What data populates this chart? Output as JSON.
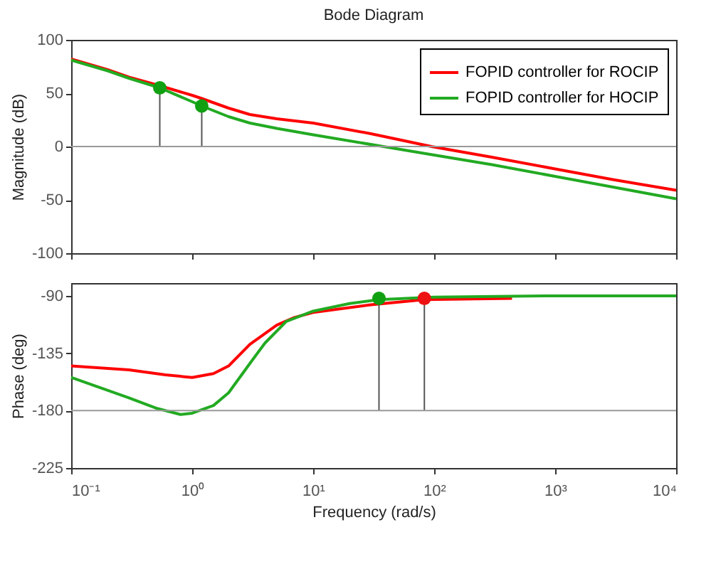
{
  "chart_data": [
    {
      "type": "line",
      "title": "Bode Diagram",
      "ylabel": "Magnitude (dB)",
      "xlim": [
        0.1,
        10000
      ],
      "ylim": [
        -100,
        100
      ],
      "yticks": [
        -100,
        -50,
        0,
        50,
        100
      ],
      "xticks": [
        0.1,
        1,
        10,
        100,
        1000,
        10000
      ],
      "log": "x",
      "tick_labels": "y",
      "legend": "top right",
      "grid": false,
      "ref_lines": [
        {
          "axis": "y",
          "value": 0,
          "color": "#999999"
        }
      ],
      "series": [
        {
          "name": "FOPID controller for ROCIP",
          "color": "#ff0000",
          "x": [
            0.1,
            0.2,
            0.3,
            0.54,
            1,
            1.2,
            2,
            3,
            5,
            10,
            30,
            95,
            300,
            1000,
            3000,
            10000
          ],
          "values": [
            82,
            72,
            65,
            57,
            48,
            45,
            36,
            30,
            26,
            22,
            12,
            0,
            -10,
            -21,
            -31,
            -41
          ]
        },
        {
          "name": "FOPID controller for HOCIP",
          "color": "#22aa22",
          "x": [
            0.1,
            0.2,
            0.3,
            0.54,
            1,
            1.2,
            2,
            3,
            5,
            10,
            38,
            100,
            300,
            1000,
            3000,
            10000
          ],
          "values": [
            81,
            71,
            64,
            55,
            42,
            38,
            28,
            22,
            17,
            11,
            0,
            -8,
            -17,
            -28,
            -38,
            -49
          ]
        },
        {
          "color": "#555555",
          "x": [
            0.54,
            0.54
          ],
          "values": [
            0,
            55
          ]
        },
        {
          "color": "#555555",
          "x": [
            1.2,
            1.2
          ],
          "values": [
            0,
            38
          ]
        },
        {
          "type": "scatter",
          "color": "#11a011",
          "x": [
            0.54,
            1.2
          ],
          "values": [
            55,
            38
          ]
        }
      ]
    },
    {
      "type": "line",
      "xlabel": "Frequency  (rad/s)",
      "ylabel": "Phase (deg)",
      "xlim": [
        0.1,
        10000
      ],
      "ylim": [
        -225,
        -80
      ],
      "yticks": [
        -225,
        -180,
        -135,
        -90
      ],
      "xticks": [
        {
          "value": 0.1,
          "label": "10⁻¹"
        },
        {
          "value": 1,
          "label": "10⁰"
        },
        {
          "value": 10,
          "label": "10¹"
        },
        {
          "value": 100,
          "label": "10²"
        },
        {
          "value": 1000,
          "label": "10³"
        },
        {
          "value": 10000,
          "label": "10⁴"
        }
      ],
      "log": "x",
      "grid": false,
      "ref_lines": [
        {
          "axis": "y",
          "value": -180,
          "color": "#999999"
        }
      ],
      "series": [
        {
          "color": "#ff0000",
          "x": [
            0.1,
            0.3,
            0.6,
            1,
            1.5,
            2,
            3,
            5,
            7,
            10,
            30,
            83,
            440
          ],
          "values": [
            -145,
            -148,
            -152,
            -154,
            -151,
            -145,
            -128,
            -113,
            -107,
            -103,
            -97,
            -93,
            -92
          ]
        },
        {
          "color": "#22aa22",
          "x": [
            0.1,
            0.3,
            0.5,
            0.8,
            1,
            1.5,
            2,
            3,
            4,
            6,
            10,
            20,
            35,
            100,
            1000,
            10000
          ],
          "values": [
            -154,
            -170,
            -178,
            -183,
            -182,
            -176,
            -166,
            -143,
            -127,
            -110,
            -102,
            -96,
            -93,
            -91,
            -90,
            -90
          ]
        },
        {
          "color": "#555555",
          "x": [
            35,
            35
          ],
          "values": [
            -180,
            -92
          ]
        },
        {
          "color": "#555555",
          "x": [
            83,
            83
          ],
          "values": [
            -180,
            -92
          ]
        },
        {
          "type": "scatter",
          "color": "#11a011",
          "x": [
            35
          ],
          "values": [
            -92
          ]
        },
        {
          "type": "scatter",
          "color": "#ee1111",
          "x": [
            83
          ],
          "values": [
            -92
          ]
        }
      ]
    }
  ]
}
